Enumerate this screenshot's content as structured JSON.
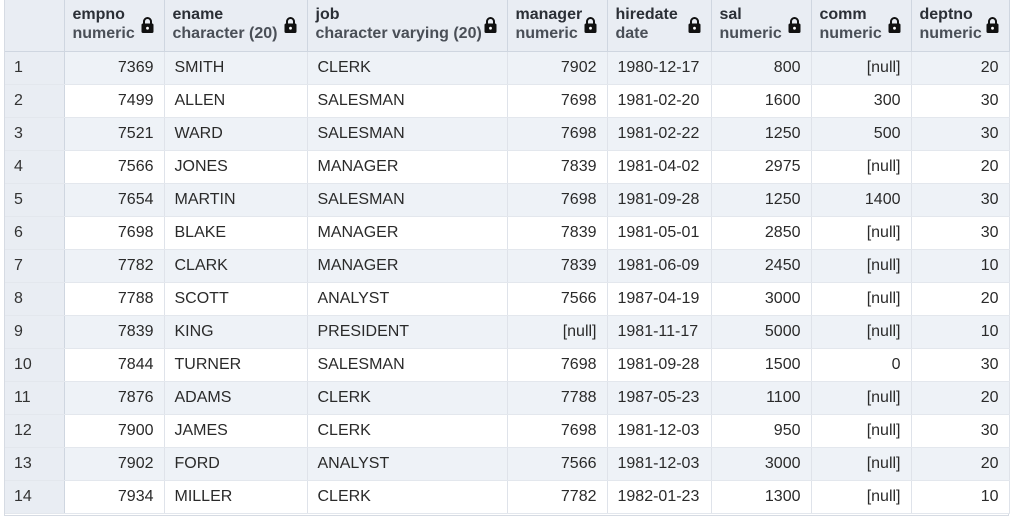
{
  "columns": [
    {
      "name": "empno",
      "type": "numeric",
      "align": "right",
      "locked": true
    },
    {
      "name": "ename",
      "type": "character (20)",
      "align": "left",
      "locked": true
    },
    {
      "name": "job",
      "type": "character varying (20)",
      "align": "left",
      "locked": true
    },
    {
      "name": "manager",
      "type": "numeric",
      "align": "right",
      "locked": true
    },
    {
      "name": "hiredate",
      "type": "date",
      "align": "left",
      "locked": true
    },
    {
      "name": "sal",
      "type": "numeric",
      "align": "right",
      "locked": true
    },
    {
      "name": "comm",
      "type": "numeric",
      "align": "right",
      "locked": true
    },
    {
      "name": "deptno",
      "type": "numeric",
      "align": "right",
      "locked": true
    }
  ],
  "lock_icon": "lock-icon",
  "rows": [
    {
      "n": "1",
      "cells": [
        "7369",
        "SMITH",
        "CLERK",
        "7902",
        "1980-12-17",
        "800",
        "[null]",
        "20"
      ]
    },
    {
      "n": "2",
      "cells": [
        "7499",
        "ALLEN",
        "SALESMAN",
        "7698",
        "1981-02-20",
        "1600",
        "300",
        "30"
      ]
    },
    {
      "n": "3",
      "cells": [
        "7521",
        "WARD",
        "SALESMAN",
        "7698",
        "1981-02-22",
        "1250",
        "500",
        "30"
      ]
    },
    {
      "n": "4",
      "cells": [
        "7566",
        "JONES",
        "MANAGER",
        "7839",
        "1981-04-02",
        "2975",
        "[null]",
        "20"
      ]
    },
    {
      "n": "5",
      "cells": [
        "7654",
        "MARTIN",
        "SALESMAN",
        "7698",
        "1981-09-28",
        "1250",
        "1400",
        "30"
      ]
    },
    {
      "n": "6",
      "cells": [
        "7698",
        "BLAKE",
        "MANAGER",
        "7839",
        "1981-05-01",
        "2850",
        "[null]",
        "30"
      ]
    },
    {
      "n": "7",
      "cells": [
        "7782",
        "CLARK",
        "MANAGER",
        "7839",
        "1981-06-09",
        "2450",
        "[null]",
        "10"
      ]
    },
    {
      "n": "8",
      "cells": [
        "7788",
        "SCOTT",
        "ANALYST",
        "7566",
        "1987-04-19",
        "3000",
        "[null]",
        "20"
      ]
    },
    {
      "n": "9",
      "cells": [
        "7839",
        "KING",
        "PRESIDENT",
        "[null]",
        "1981-11-17",
        "5000",
        "[null]",
        "10"
      ]
    },
    {
      "n": "10",
      "cells": [
        "7844",
        "TURNER",
        "SALESMAN",
        "7698",
        "1981-09-28",
        "1500",
        "0",
        "30"
      ]
    },
    {
      "n": "11",
      "cells": [
        "7876",
        "ADAMS",
        "CLERK",
        "7788",
        "1987-05-23",
        "1100",
        "[null]",
        "20"
      ]
    },
    {
      "n": "12",
      "cells": [
        "7900",
        "JAMES",
        "CLERK",
        "7698",
        "1981-12-03",
        "950",
        "[null]",
        "30"
      ]
    },
    {
      "n": "13",
      "cells": [
        "7902",
        "FORD",
        "ANALYST",
        "7566",
        "1981-12-03",
        "3000",
        "[null]",
        "20"
      ]
    },
    {
      "n": "14",
      "cells": [
        "7934",
        "MILLER",
        "CLERK",
        "7782",
        "1982-01-23",
        "1300",
        "[null]",
        "10"
      ]
    }
  ]
}
